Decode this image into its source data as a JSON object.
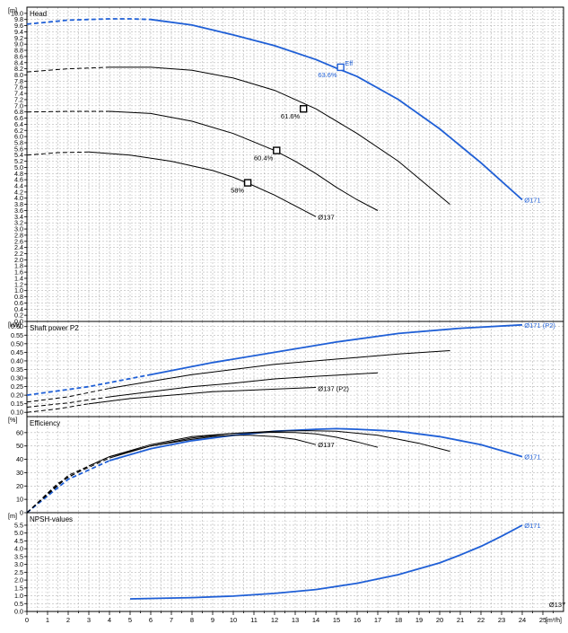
{
  "chart_data": [
    {
      "type": "line",
      "title": "Head",
      "unit_label": "[m]",
      "xlim": [
        0,
        26
      ],
      "ylim": [
        0,
        10.2
      ],
      "y_ticks": [
        "0.0",
        "0.2",
        "0.4",
        "0.6",
        "0.8",
        "1.0",
        "1.2",
        "1.4",
        "1.6",
        "1.8",
        "2.0",
        "2.2",
        "2.4",
        "2.6",
        "2.8",
        "3.0",
        "3.2",
        "3.4",
        "3.6",
        "3.8",
        "4.0",
        "4.2",
        "4.4",
        "4.6",
        "4.8",
        "5.0",
        "5.2",
        "5.4",
        "5.6",
        "5.8",
        "6.0",
        "6.2",
        "6.4",
        "6.6",
        "6.8",
        "7.0",
        "7.2",
        "7.4",
        "7.6",
        "7.8",
        "8.0",
        "8.2",
        "8.4",
        "8.6",
        "8.8",
        "9.0",
        "9.2",
        "9.4",
        "9.6",
        "9.8",
        "10.0"
      ],
      "series": [
        {
          "name": "Ø171",
          "color": "#1f5fd6",
          "dashed_until": 6,
          "x": [
            0,
            2,
            4,
            5,
            6,
            8,
            10,
            12,
            14,
            15,
            16,
            18,
            20,
            22,
            24
          ],
          "y": [
            9.65,
            9.78,
            9.82,
            9.82,
            9.8,
            9.62,
            9.3,
            8.95,
            8.5,
            8.22,
            7.95,
            7.2,
            6.25,
            5.15,
            3.95
          ]
        },
        {
          "name": "",
          "color": "#000000",
          "dashed_until": 4,
          "x": [
            0,
            2,
            4,
            6,
            8,
            10,
            12,
            14,
            16,
            18,
            20.5
          ],
          "y": [
            8.1,
            8.2,
            8.25,
            8.25,
            8.15,
            7.9,
            7.5,
            6.9,
            6.1,
            5.2,
            3.8
          ]
        },
        {
          "name": "",
          "color": "#000000",
          "dashed_until": 4,
          "x": [
            0,
            2,
            4,
            6,
            8,
            10,
            12,
            13,
            14,
            15,
            16,
            17
          ],
          "y": [
            6.8,
            6.82,
            6.82,
            6.75,
            6.5,
            6.1,
            5.55,
            5.2,
            4.8,
            4.35,
            3.95,
            3.6
          ]
        },
        {
          "name": "Ø137",
          "color": "#000000",
          "dashed_until": 3,
          "x": [
            0,
            1.5,
            3,
            5,
            7,
            9,
            10,
            11,
            12,
            13,
            14
          ],
          "y": [
            5.4,
            5.48,
            5.5,
            5.4,
            5.2,
            4.9,
            4.68,
            4.4,
            4.1,
            3.75,
            3.4
          ]
        }
      ],
      "markers": [
        {
          "x": 15.2,
          "y": 8.25,
          "label": "63.6%",
          "color": "#1f5fd6"
        },
        {
          "x": 13.4,
          "y": 6.9,
          "label": "61.6%",
          "color": "#000000"
        },
        {
          "x": 12.1,
          "y": 5.55,
          "label": "60.4%",
          "color": "#000000"
        },
        {
          "x": 10.7,
          "y": 4.5,
          "label": "58%",
          "color": "#000000"
        }
      ],
      "annotations": [
        {
          "text": "Eff",
          "x": 15.4,
          "y": 8.4,
          "color": "#1f5fd6"
        },
        {
          "text": "Ø171",
          "x": 24.1,
          "y": 3.95,
          "color": "#1f5fd6"
        },
        {
          "text": "Ø137",
          "x": 14.1,
          "y": 3.4,
          "color": "#000000"
        }
      ]
    },
    {
      "type": "line",
      "title": "Shaft power P2",
      "unit_label": "[kW]",
      "xlim": [
        0,
        26
      ],
      "ylim": [
        0.075,
        0.63
      ],
      "y_ticks": [
        "0.10",
        "0.15",
        "0.20",
        "0.25",
        "0.30",
        "0.35",
        "0.40",
        "0.45",
        "0.50",
        "0.55",
        "0.60"
      ],
      "series": [
        {
          "name": "Ø171 (P2)",
          "color": "#1f5fd6",
          "dashed_until": 6,
          "x": [
            0,
            3,
            6,
            9,
            12,
            15,
            18,
            21,
            24
          ],
          "y": [
            0.2,
            0.25,
            0.32,
            0.39,
            0.45,
            0.51,
            0.56,
            0.59,
            0.61
          ]
        },
        {
          "name": "",
          "color": "#000000",
          "dashed_until": 4,
          "x": [
            0,
            2,
            4,
            6,
            8,
            10,
            12,
            14,
            16,
            18,
            20.5
          ],
          "y": [
            0.16,
            0.19,
            0.24,
            0.28,
            0.32,
            0.35,
            0.38,
            0.4,
            0.42,
            0.44,
            0.46
          ]
        },
        {
          "name": "",
          "color": "#000000",
          "dashed_until": 4,
          "x": [
            0,
            2,
            4,
            6,
            8,
            10,
            12,
            14,
            17
          ],
          "y": [
            0.13,
            0.155,
            0.19,
            0.22,
            0.25,
            0.27,
            0.295,
            0.31,
            0.33
          ]
        },
        {
          "name": "Ø137 (P2)",
          "color": "#000000",
          "dashed_until": 3,
          "x": [
            0,
            1.5,
            3,
            5,
            7,
            9,
            11,
            12,
            14
          ],
          "y": [
            0.1,
            0.12,
            0.15,
            0.18,
            0.2,
            0.22,
            0.23,
            0.235,
            0.245
          ]
        }
      ],
      "annotations": [
        {
          "text": "Ø171 (P2)",
          "x": 24.1,
          "y": 0.61,
          "color": "#1f5fd6"
        },
        {
          "text": "Ø137 (P2)",
          "x": 14.1,
          "y": 0.24,
          "color": "#000000"
        }
      ]
    },
    {
      "type": "line",
      "title": "Efficiency",
      "unit_label": "[%]",
      "xlim": [
        0,
        26
      ],
      "ylim": [
        0,
        72
      ],
      "y_ticks": [
        "0",
        "10",
        "20",
        "30",
        "40",
        "50",
        "60"
      ],
      "series": [
        {
          "name": "Ø171",
          "color": "#1f5fd6",
          "dashed_until": 4,
          "x": [
            0,
            2,
            4,
            6,
            8,
            10,
            12,
            14,
            15,
            16,
            18,
            20,
            22,
            24
          ],
          "y": [
            0,
            25,
            39,
            48,
            54,
            58,
            61,
            62.5,
            63,
            62.5,
            61,
            57,
            51,
            42
          ]
        },
        {
          "name": "",
          "color": "#000000",
          "dashed_until": 4,
          "x": [
            0,
            2,
            4,
            6,
            8,
            10,
            12,
            13.5,
            15,
            17,
            19,
            20.5
          ],
          "y": [
            0,
            27,
            41,
            50,
            56,
            59.5,
            61,
            61.5,
            61,
            58,
            52,
            46
          ]
        },
        {
          "name": "",
          "color": "#000000",
          "dashed_until": 4,
          "x": [
            0,
            2,
            4,
            6,
            8,
            10,
            12,
            13,
            14,
            15,
            16,
            17
          ],
          "y": [
            0,
            28,
            42,
            51,
            57,
            59.5,
            60.2,
            60,
            59,
            56.5,
            53,
            49
          ]
        },
        {
          "name": "Ø137",
          "color": "#000000",
          "dashed_until": 3,
          "x": [
            0,
            1.5,
            3,
            4,
            6,
            8,
            9,
            10,
            10.8,
            12,
            13,
            14
          ],
          "y": [
            0,
            22,
            35,
            42,
            50,
            55,
            57,
            58,
            58,
            57,
            55,
            51
          ]
        }
      ],
      "annotations": [
        {
          "text": "Ø171",
          "x": 24.1,
          "y": 42,
          "color": "#1f5fd6"
        },
        {
          "text": "Ø137",
          "x": 14.1,
          "y": 51,
          "color": "#000000"
        }
      ]
    },
    {
      "type": "line",
      "title": "NPSH-values",
      "unit_label": "[m]",
      "xlim": [
        0,
        26
      ],
      "ylim": [
        0,
        6.3
      ],
      "y_ticks": [
        "0.0",
        "0.5",
        "1.0",
        "1.5",
        "2.0",
        "2.5",
        "3.0",
        "3.5",
        "4.0",
        "4.5",
        "5.0",
        "5.5"
      ],
      "x_ticks": [
        "0",
        "1",
        "2",
        "3",
        "4",
        "5",
        "6",
        "7",
        "8",
        "9",
        "10",
        "11",
        "12",
        "13",
        "14",
        "15",
        "16",
        "17",
        "18",
        "19",
        "20",
        "21",
        "22",
        "23",
        "24",
        "25"
      ],
      "x_unit": "[m³/h]",
      "series": [
        {
          "name": "Ø171",
          "color": "#1f5fd6",
          "dashed_until": 0,
          "x": [
            5,
            8,
            10,
            12,
            14,
            16,
            18,
            20,
            21,
            22,
            23,
            24
          ],
          "y": [
            0.8,
            0.88,
            0.98,
            1.15,
            1.4,
            1.8,
            2.35,
            3.1,
            3.6,
            4.15,
            4.8,
            5.5
          ]
        }
      ],
      "annotations": [
        {
          "text": "Ø171",
          "x": 24.1,
          "y": 5.5,
          "color": "#1f5fd6"
        },
        {
          "text": "Ø137",
          "x": 25.3,
          "y": 0.45,
          "color": "#000000"
        }
      ]
    }
  ]
}
